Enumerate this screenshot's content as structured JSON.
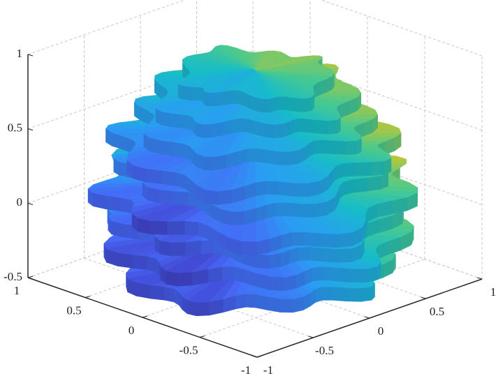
{
  "chart_data": {
    "type": "surface3d",
    "xlim": [
      -1,
      1
    ],
    "ylim": [
      -1,
      1
    ],
    "zlim": [
      -0.5,
      1
    ],
    "xticks": [
      -1,
      -0.5,
      0,
      0.5,
      1
    ],
    "yticks": [
      -1,
      -0.5,
      0,
      0.5,
      1
    ],
    "zticks": [
      -0.5,
      0,
      0.5,
      1
    ],
    "grid": true,
    "colormap": [
      "#3e26a8",
      "#4669f7",
      "#2a9df3",
      "#17bcc9",
      "#4ac98e",
      "#b4c73d",
      "#f9bd38"
    ],
    "z": [
      -0.35,
      -0.15,
      0.0,
      0.15,
      0.3,
      0.45,
      0.6,
      0.75,
      0.88
    ],
    "r": [
      0.8,
      0.9,
      0.85,
      0.95,
      0.8,
      0.85,
      0.7,
      0.6,
      0.45
    ]
  }
}
